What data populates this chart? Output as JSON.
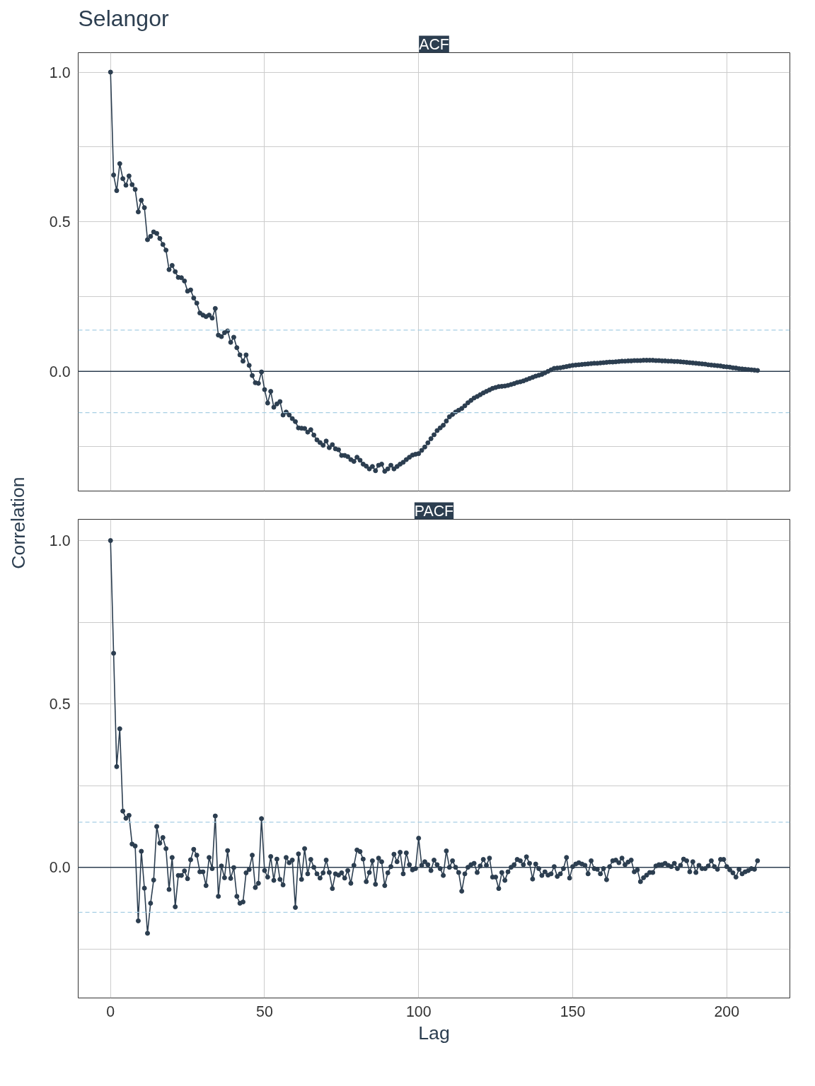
{
  "chart_data": [
    {
      "type": "line",
      "title": "Selangor",
      "subtitle": "ACF",
      "ylabel": "Correlation",
      "grid": true,
      "marker": "circle",
      "line_style": "solid",
      "tick_labels": "y",
      "xlim": [
        -10.5,
        220.5
      ],
      "xticks": [
        0,
        50,
        100,
        150,
        200
      ],
      "ylim": [
        -0.4,
        1.065
      ],
      "yticks": [
        {
          "value": -0.25,
          "label": null
        },
        {
          "value": 0,
          "label": "0.0"
        },
        {
          "value": 0.25,
          "label": null
        },
        {
          "value": 0.5,
          "label": "0.5"
        },
        {
          "value": 0.75,
          "label": null
        },
        {
          "value": 1,
          "label": "1.0"
        }
      ],
      "ref_lines": [
        {
          "axis": "y",
          "value": 0,
          "label": null,
          "color": "#2c3e50",
          "line_style": "solid"
        },
        {
          "axis": "y",
          "value": 0.138,
          "label": null,
          "color": "#a6cee3",
          "line_style": "dashed"
        },
        {
          "axis": "y",
          "value": -0.138,
          "label": null,
          "color": "#a6cee3",
          "line_style": "dashed"
        }
      ],
      "x": [
        0,
        1,
        2,
        3,
        4,
        5,
        6,
        7,
        8,
        9,
        10,
        11,
        12,
        13,
        14,
        15,
        16,
        17,
        18,
        19,
        20,
        21,
        22,
        23,
        24,
        25,
        26,
        27,
        28,
        29,
        30,
        31,
        32,
        33,
        34,
        35,
        36,
        37,
        38,
        39,
        40,
        41,
        42,
        43,
        44,
        45,
        46,
        47,
        48,
        49,
        50,
        51,
        52,
        53,
        54,
        55,
        56,
        57,
        58,
        59,
        60,
        61,
        62,
        63,
        64,
        65,
        66,
        67,
        68,
        69,
        70,
        71,
        72,
        73,
        74,
        75,
        76,
        77,
        78,
        79,
        80,
        81,
        82,
        83,
        84,
        85,
        86,
        87,
        88,
        89,
        90,
        91,
        92,
        93,
        94,
        95,
        96,
        97,
        98,
        99,
        100,
        101,
        102,
        103,
        104,
        105,
        106,
        107,
        108,
        109,
        110,
        111,
        112,
        113,
        114,
        115,
        116,
        117,
        118,
        119,
        120,
        121,
        122,
        123,
        124,
        125,
        126,
        127,
        128,
        129,
        130,
        131,
        132,
        133,
        134,
        135,
        136,
        137,
        138,
        139,
        140,
        141,
        142,
        143,
        144,
        145,
        146,
        147,
        148,
        149,
        150,
        151,
        152,
        153,
        154,
        155,
        156,
        157,
        158,
        159,
        160,
        161,
        162,
        163,
        164,
        165,
        166,
        167,
        168,
        169,
        170,
        171,
        172,
        173,
        174,
        175,
        176,
        177,
        178,
        179,
        180,
        181,
        182,
        183,
        184,
        185,
        186,
        187,
        188,
        189,
        190,
        191,
        192,
        193,
        194,
        195,
        196,
        197,
        198,
        199,
        200,
        201,
        202,
        203,
        204,
        205,
        206,
        207,
        208,
        209,
        210
      ],
      "series": [
        {
          "color": "#2c3e50",
          "values": [
            1.0,
            0.656,
            0.604,
            0.694,
            0.644,
            0.622,
            0.653,
            0.624,
            0.608,
            0.533,
            0.572,
            0.547,
            0.44,
            0.451,
            0.466,
            0.461,
            0.444,
            0.424,
            0.405,
            0.34,
            0.354,
            0.333,
            0.314,
            0.313,
            0.302,
            0.268,
            0.272,
            0.245,
            0.228,
            0.195,
            0.188,
            0.183,
            0.188,
            0.178,
            0.21,
            0.121,
            0.116,
            0.129,
            0.135,
            0.097,
            0.114,
            0.079,
            0.055,
            0.034,
            0.055,
            0.02,
            -0.014,
            -0.038,
            -0.04,
            -0.002,
            -0.061,
            -0.106,
            -0.067,
            -0.12,
            -0.109,
            -0.101,
            -0.146,
            -0.136,
            -0.146,
            -0.158,
            -0.168,
            -0.189,
            -0.19,
            -0.191,
            -0.203,
            -0.195,
            -0.213,
            -0.229,
            -0.238,
            -0.247,
            -0.233,
            -0.255,
            -0.245,
            -0.259,
            -0.262,
            -0.281,
            -0.281,
            -0.285,
            -0.295,
            -0.301,
            -0.287,
            -0.297,
            -0.31,
            -0.317,
            -0.326,
            -0.318,
            -0.332,
            -0.314,
            -0.31,
            -0.334,
            -0.326,
            -0.314,
            -0.326,
            -0.318,
            -0.31,
            -0.304,
            -0.295,
            -0.287,
            -0.28,
            -0.277,
            -0.275,
            -0.264,
            -0.253,
            -0.239,
            -0.225,
            -0.212,
            -0.198,
            -0.189,
            -0.18,
            -0.166,
            -0.152,
            -0.144,
            -0.136,
            -0.13,
            -0.124,
            -0.115,
            -0.105,
            -0.097,
            -0.089,
            -0.084,
            -0.078,
            -0.072,
            -0.067,
            -0.062,
            -0.057,
            -0.054,
            -0.051,
            -0.05,
            -0.049,
            -0.047,
            -0.044,
            -0.041,
            -0.037,
            -0.035,
            -0.032,
            -0.028,
            -0.024,
            -0.02,
            -0.016,
            -0.013,
            -0.01,
            -0.005,
            0.0,
            0.005,
            0.01,
            0.011,
            0.012,
            0.014,
            0.016,
            0.018,
            0.02,
            0.021,
            0.022,
            0.023,
            0.024,
            0.025,
            0.026,
            0.027,
            0.027,
            0.028,
            0.029,
            0.03,
            0.031,
            0.031,
            0.032,
            0.033,
            0.034,
            0.034,
            0.035,
            0.035,
            0.036,
            0.036,
            0.036,
            0.037,
            0.037,
            0.037,
            0.037,
            0.036,
            0.036,
            0.035,
            0.035,
            0.034,
            0.034,
            0.033,
            0.033,
            0.032,
            0.031,
            0.03,
            0.029,
            0.028,
            0.027,
            0.026,
            0.025,
            0.024,
            0.022,
            0.021,
            0.02,
            0.019,
            0.018,
            0.016,
            0.015,
            0.014,
            0.012,
            0.011,
            0.009,
            0.008,
            0.007,
            0.006,
            0.005,
            0.004,
            0.003
          ]
        }
      ]
    },
    {
      "type": "line",
      "subtitle": "PACF",
      "xlabel": "Lag",
      "grid": true,
      "marker": "circle",
      "line_style": "solid",
      "xlim": [
        -10.5,
        220.5
      ],
      "xticks": [
        0,
        50,
        100,
        150,
        200
      ],
      "ylim": [
        -0.4,
        1.065
      ],
      "yticks": [
        {
          "value": -0.25,
          "label": null
        },
        {
          "value": 0,
          "label": "0.0"
        },
        {
          "value": 0.25,
          "label": null
        },
        {
          "value": 0.5,
          "label": "0.5"
        },
        {
          "value": 0.75,
          "label": null
        },
        {
          "value": 1,
          "label": "1.0"
        }
      ],
      "ref_lines": [
        {
          "axis": "y",
          "value": 0,
          "label": null,
          "color": "#2c3e50",
          "line_style": "solid"
        },
        {
          "axis": "y",
          "value": 0.138,
          "label": null,
          "color": "#a6cee3",
          "line_style": "dashed"
        },
        {
          "axis": "y",
          "value": -0.138,
          "label": null,
          "color": "#a6cee3",
          "line_style": "dashed"
        }
      ],
      "x": [
        0,
        1,
        2,
        3,
        4,
        5,
        6,
        7,
        8,
        9,
        10,
        11,
        12,
        13,
        14,
        15,
        16,
        17,
        18,
        19,
        20,
        21,
        22,
        23,
        24,
        25,
        26,
        27,
        28,
        29,
        30,
        31,
        32,
        33,
        34,
        35,
        36,
        37,
        38,
        39,
        40,
        41,
        42,
        43,
        44,
        45,
        46,
        47,
        48,
        49,
        50,
        51,
        52,
        53,
        54,
        55,
        56,
        57,
        58,
        59,
        60,
        61,
        62,
        63,
        64,
        65,
        66,
        67,
        68,
        69,
        70,
        71,
        72,
        73,
        74,
        75,
        76,
        77,
        78,
        79,
        80,
        81,
        82,
        83,
        84,
        85,
        86,
        87,
        88,
        89,
        90,
        91,
        92,
        93,
        94,
        95,
        96,
        97,
        98,
        99,
        100,
        101,
        102,
        103,
        104,
        105,
        106,
        107,
        108,
        109,
        110,
        111,
        112,
        113,
        114,
        115,
        116,
        117,
        118,
        119,
        120,
        121,
        122,
        123,
        124,
        125,
        126,
        127,
        128,
        129,
        130,
        131,
        132,
        133,
        134,
        135,
        136,
        137,
        138,
        139,
        140,
        141,
        142,
        143,
        144,
        145,
        146,
        147,
        148,
        149,
        150,
        151,
        152,
        153,
        154,
        155,
        156,
        157,
        158,
        159,
        160,
        161,
        162,
        163,
        164,
        165,
        166,
        167,
        168,
        169,
        170,
        171,
        172,
        173,
        174,
        175,
        176,
        177,
        178,
        179,
        180,
        181,
        182,
        183,
        184,
        185,
        186,
        187,
        188,
        189,
        190,
        191,
        192,
        193,
        194,
        195,
        196,
        197,
        198,
        199,
        200,
        201,
        202,
        203,
        204,
        205,
        206,
        207,
        208,
        209,
        210
      ],
      "series": [
        {
          "color": "#2c3e50",
          "values": [
            1.0,
            0.655,
            0.308,
            0.424,
            0.172,
            0.15,
            0.159,
            0.071,
            0.065,
            -0.164,
            0.049,
            -0.064,
            -0.202,
            -0.11,
            -0.039,
            0.125,
            0.074,
            0.091,
            0.057,
            -0.068,
            0.03,
            -0.121,
            -0.025,
            -0.025,
            -0.011,
            -0.035,
            0.023,
            0.055,
            0.037,
            -0.014,
            -0.014,
            -0.056,
            0.03,
            -0.004,
            0.157,
            -0.089,
            0.004,
            -0.032,
            0.051,
            -0.034,
            -0.001,
            -0.089,
            -0.11,
            -0.106,
            -0.017,
            -0.007,
            0.037,
            -0.062,
            -0.049,
            0.149,
            -0.01,
            -0.03,
            0.033,
            -0.04,
            0.025,
            -0.037,
            -0.054,
            0.03,
            0.014,
            0.022,
            -0.123,
            0.041,
            -0.037,
            0.057,
            -0.02,
            0.024,
            0.0,
            -0.02,
            -0.033,
            -0.017,
            0.022,
            -0.016,
            -0.065,
            -0.02,
            -0.024,
            -0.017,
            -0.033,
            -0.01,
            -0.049,
            0.006,
            0.053,
            0.048,
            0.025,
            -0.044,
            -0.016,
            0.02,
            -0.052,
            0.028,
            0.017,
            -0.056,
            -0.017,
            0.002,
            0.04,
            0.017,
            0.046,
            -0.02,
            0.044,
            0.008,
            -0.008,
            -0.004,
            0.089,
            0.006,
            0.017,
            0.008,
            -0.01,
            0.022,
            0.008,
            -0.004,
            -0.025,
            0.05,
            0.0,
            0.02,
            0.0,
            -0.016,
            -0.073,
            -0.02,
            0.0,
            0.008,
            0.012,
            -0.016,
            0.004,
            0.024,
            0.006,
            0.028,
            -0.03,
            -0.03,
            -0.065,
            -0.016,
            -0.04,
            -0.014,
            0.0,
            0.008,
            0.024,
            0.02,
            0.008,
            0.032,
            0.012,
            -0.036,
            0.01,
            -0.004,
            -0.025,
            -0.014,
            -0.024,
            -0.02,
            0.002,
            -0.028,
            -0.02,
            -0.004,
            0.03,
            -0.033,
            0.002,
            0.01,
            0.014,
            0.01,
            0.006,
            -0.02,
            0.02,
            -0.004,
            -0.006,
            -0.02,
            -0.004,
            -0.038,
            0.002,
            0.02,
            0.022,
            0.014,
            0.028,
            0.008,
            0.016,
            0.022,
            -0.014,
            -0.008,
            -0.044,
            -0.032,
            -0.024,
            -0.016,
            -0.016,
            0.004,
            0.008,
            0.008,
            0.012,
            0.006,
            0.002,
            0.012,
            -0.004,
            0.006,
            0.025,
            0.02,
            -0.014,
            0.017,
            -0.016,
            0.006,
            -0.004,
            -0.004,
            0.004,
            0.02,
            0.002,
            -0.006,
            0.024,
            0.024,
            0.002,
            -0.008,
            -0.017,
            -0.03,
            -0.006,
            -0.02,
            -0.014,
            -0.01,
            -0.004,
            -0.006,
            0.02
          ]
        }
      ]
    }
  ]
}
